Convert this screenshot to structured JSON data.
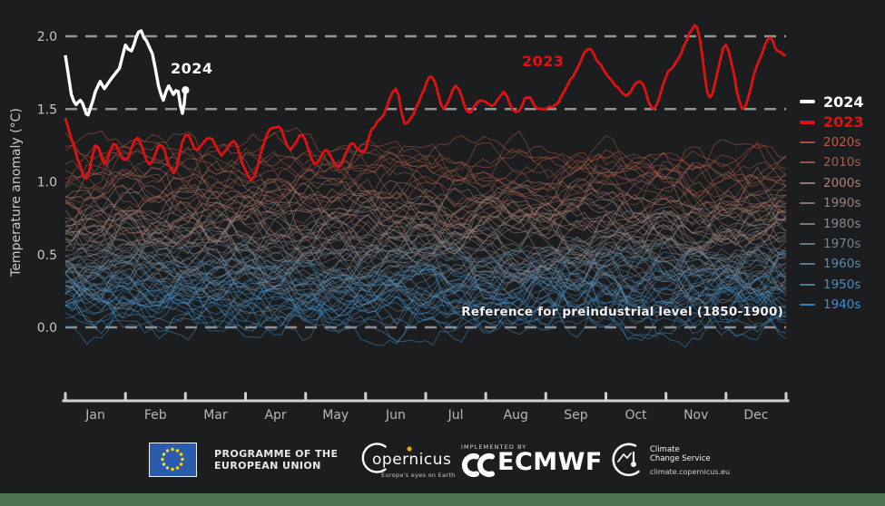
{
  "colors": {
    "background": "#1c1d1f",
    "gridline": "#929396",
    "axis": "#d0d1d3",
    "tick_label": "#c6c7c9",
    "month_label": "#b6b7b9",
    "series_2024": "#ffffff",
    "series_2023": "#e01111",
    "green_bar": "#4a7450",
    "eu_flag_blue": "#2a5cab",
    "eu_star_yellow": "#ffd617",
    "copernicus_orange": "#f0a500"
  },
  "axes": {
    "y_title": "Temperature anomaly (°C)",
    "y_ticks": [
      {
        "label": "2.0",
        "value": 2.0
      },
      {
        "label": "1.5",
        "value": 1.5
      },
      {
        "label": "1.0",
        "value": 1.0
      },
      {
        "label": "0.5",
        "value": 0.5
      },
      {
        "label": "0.0",
        "value": 0.0
      }
    ],
    "dashed_gridline_values": [
      2.0,
      1.5,
      0.0
    ]
  },
  "annotations": {
    "label_2024": "2024",
    "label_2023": "2023",
    "reference_text": "Reference for preindustrial level (1850-1900)"
  },
  "legend": {
    "items": [
      {
        "label": "2024",
        "color": "#ffffff",
        "thick": true
      },
      {
        "label": "2023",
        "color": "#e01111",
        "thick": true
      },
      {
        "label": "2020s",
        "color": "#c05b42",
        "thick": false
      },
      {
        "label": "2010s",
        "color": "#a4604e",
        "thick": false
      },
      {
        "label": "2000s",
        "color": "#b08273",
        "thick": false
      },
      {
        "label": "1990s",
        "color": "#998379",
        "thick": false
      },
      {
        "label": "1980s",
        "color": "#868a90",
        "thick": false
      },
      {
        "label": "1970s",
        "color": "#6f8596",
        "thick": false
      },
      {
        "label": "1960s",
        "color": "#5c8aad",
        "thick": false
      },
      {
        "label": "1950s",
        "color": "#4a8dbd",
        "thick": false
      },
      {
        "label": "1940s",
        "color": "#3a92d3",
        "thick": false
      }
    ]
  },
  "chart_data": {
    "type": "line",
    "title": "",
    "ylabel": "Temperature anomaly (°C)",
    "ylim": [
      -0.45,
      2.15
    ],
    "months": [
      "Jan",
      "Feb",
      "Mar",
      "Apr",
      "May",
      "Jun",
      "Jul",
      "Aug",
      "Sep",
      "Oct",
      "Nov",
      "Dec"
    ],
    "reference_line_value": 0.0,
    "threshold_lines": [
      1.5,
      2.0
    ],
    "series_2023": {
      "name": "2023",
      "color": "#e01111",
      "points_month_value": [
        [
          0,
          1.44
        ],
        [
          0.2,
          1.16
        ],
        [
          0.35,
          1.02
        ],
        [
          0.5,
          1.25
        ],
        [
          0.65,
          1.12
        ],
        [
          0.8,
          1.26
        ],
        [
          1.0,
          1.15
        ],
        [
          1.2,
          1.3
        ],
        [
          1.4,
          1.12
        ],
        [
          1.6,
          1.25
        ],
        [
          1.8,
          1.06
        ],
        [
          2.0,
          1.32
        ],
        [
          2.2,
          1.22
        ],
        [
          2.4,
          1.3
        ],
        [
          2.6,
          1.18
        ],
        [
          2.8,
          1.28
        ],
        [
          3.0,
          1.08
        ],
        [
          3.15,
          1.04
        ],
        [
          3.35,
          1.32
        ],
        [
          3.55,
          1.38
        ],
        [
          3.75,
          1.22
        ],
        [
          3.95,
          1.32
        ],
        [
          4.15,
          1.12
        ],
        [
          4.35,
          1.22
        ],
        [
          4.55,
          1.1
        ],
        [
          4.75,
          1.26
        ],
        [
          4.95,
          1.2
        ],
        [
          5.1,
          1.36
        ],
        [
          5.3,
          1.46
        ],
        [
          5.5,
          1.64
        ],
        [
          5.65,
          1.4
        ],
        [
          5.85,
          1.52
        ],
        [
          6.1,
          1.72
        ],
        [
          6.3,
          1.5
        ],
        [
          6.5,
          1.66
        ],
        [
          6.7,
          1.48
        ],
        [
          6.9,
          1.56
        ],
        [
          7.1,
          1.52
        ],
        [
          7.3,
          1.62
        ],
        [
          7.5,
          1.48
        ],
        [
          7.7,
          1.58
        ],
        [
          7.9,
          1.5
        ],
        [
          8.16,
          1.53
        ],
        [
          8.45,
          1.72
        ],
        [
          8.7,
          1.91
        ],
        [
          8.96,
          1.77
        ],
        [
          9.2,
          1.65
        ],
        [
          9.34,
          1.59
        ],
        [
          9.57,
          1.69
        ],
        [
          9.8,
          1.5
        ],
        [
          10.0,
          1.72
        ],
        [
          10.25,
          1.88
        ],
        [
          10.52,
          2.06
        ],
        [
          10.73,
          1.58
        ],
        [
          11.0,
          1.94
        ],
        [
          11.27,
          1.5
        ],
        [
          11.5,
          1.78
        ],
        [
          11.73,
          1.99
        ],
        [
          11.85,
          1.9
        ],
        [
          12,
          1.87
        ]
      ]
    },
    "series_2024": {
      "name": "2024",
      "color": "#ffffff",
      "points_month_value": [
        [
          0,
          1.87
        ],
        [
          0.1,
          1.6
        ],
        [
          0.18,
          1.53
        ],
        [
          0.25,
          1.56
        ],
        [
          0.32,
          1.5
        ],
        [
          0.38,
          1.46
        ],
        [
          0.5,
          1.62
        ],
        [
          0.58,
          1.69
        ],
        [
          0.65,
          1.64
        ],
        [
          0.75,
          1.7
        ],
        [
          0.9,
          1.78
        ],
        [
          1.0,
          1.94
        ],
        [
          1.1,
          1.9
        ],
        [
          1.22,
          2.03
        ],
        [
          1.35,
          1.97
        ],
        [
          1.45,
          1.88
        ],
        [
          1.55,
          1.66
        ],
        [
          1.63,
          1.56
        ],
        [
          1.72,
          1.66
        ],
        [
          1.8,
          1.6
        ],
        [
          1.88,
          1.62
        ],
        [
          1.95,
          1.47
        ],
        [
          2.0,
          1.63
        ]
      ],
      "end_dot_month_value": [
        2.0,
        1.63
      ]
    },
    "decades": [
      {
        "name": "2020s",
        "color": "#c05b42",
        "approx_mean_anomaly": 1.13,
        "n_lines": 4
      },
      {
        "name": "2010s",
        "color": "#a4604e",
        "approx_mean_anomaly": 0.97,
        "n_lines": 10
      },
      {
        "name": "2000s",
        "color": "#b08273",
        "approx_mean_anomaly": 0.82,
        "n_lines": 10
      },
      {
        "name": "1990s",
        "color": "#998379",
        "approx_mean_anomaly": 0.65,
        "n_lines": 10
      },
      {
        "name": "1980s",
        "color": "#868a90",
        "approx_mean_anomaly": 0.52,
        "n_lines": 10
      },
      {
        "name": "1970s",
        "color": "#6f8596",
        "approx_mean_anomaly": 0.38,
        "n_lines": 10
      },
      {
        "name": "1960s",
        "color": "#5c8aad",
        "approx_mean_anomaly": 0.3,
        "n_lines": 10
      },
      {
        "name": "1950s",
        "color": "#4a8dbd",
        "approx_mean_anomaly": 0.26,
        "n_lines": 10
      },
      {
        "name": "1940s",
        "color": "#3a92d3",
        "approx_mean_anomaly": 0.2,
        "n_lines": 10
      }
    ]
  },
  "footer": {
    "eu": {
      "line1": "PROGRAMME OF THE",
      "line2": "EUROPEAN UNION"
    },
    "copernicus": {
      "name": "Copernicus",
      "tagline": "Europe's eyes on Earth"
    },
    "ecmwf": {
      "implemented_by": "IMPLEMENTED BY",
      "name": "ECMWF"
    },
    "ccs": {
      "line1": "Climate",
      "line2": "Change Service",
      "url": "climate.copernicus.eu"
    }
  }
}
